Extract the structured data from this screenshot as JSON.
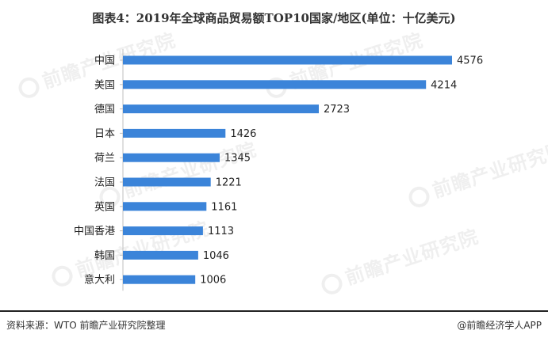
{
  "title": "图表4：2019年全球商品贸易额TOP10国家/地区(单位：十亿美元)",
  "watermark": "前瞻产业研究院",
  "footer": {
    "source": "资料来源：WTO 前瞻产业研究院整理",
    "credit": "@前瞻经济学人APP"
  },
  "colors": {
    "bar": "#3b84d9",
    "axis": "#bfbfbf"
  },
  "chart_data": {
    "type": "bar",
    "orientation": "horizontal",
    "title": "图表4：2019年全球商品贸易额TOP10国家/地区(单位：十亿美元)",
    "categories": [
      "中国",
      "美国",
      "德国",
      "日本",
      "荷兰",
      "法国",
      "英国",
      "中国香港",
      "韩国",
      "意大利"
    ],
    "values": [
      4576,
      4214,
      2723,
      1426,
      1345,
      1221,
      1161,
      1113,
      1046,
      1006
    ],
    "xlim": [
      0,
      4576
    ],
    "grid": false,
    "legend": "none"
  }
}
